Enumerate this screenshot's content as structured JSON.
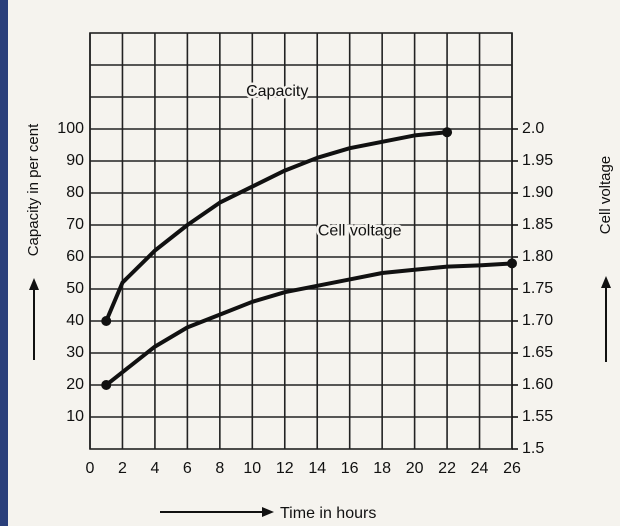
{
  "chart_data": {
    "type": "line",
    "xlabel": "Time in hours",
    "ylabel": "Capacity in per cent",
    "y2label": "Cell voltage",
    "xlim": [
      0,
      26
    ],
    "xticks": [
      0,
      2,
      4,
      6,
      8,
      10,
      12,
      14,
      16,
      18,
      20,
      22,
      24,
      26
    ],
    "ylim": [
      0,
      130
    ],
    "yticks": [
      10,
      20,
      30,
      40,
      50,
      60,
      70,
      80,
      90,
      100
    ],
    "y2lim": [
      1.5,
      2.15
    ],
    "y2ticks": [
      1.5,
      1.55,
      {
        "value": 1.6,
        "label": "1.60"
      },
      1.65,
      {
        "value": 1.7,
        "label": "1.70"
      },
      1.75,
      {
        "value": 1.8,
        "label": "1.80"
      },
      1.85,
      {
        "value": 1.9,
        "label": "1.90"
      },
      1.95,
      {
        "value": 2.0,
        "label": "2.0"
      }
    ],
    "grid": true,
    "series": [
      {
        "name": "Capacity",
        "color": "#111111",
        "x": [
          1,
          2,
          4,
          6,
          8,
          10,
          12,
          14,
          16,
          18,
          20,
          22
        ],
        "values": [
          40,
          52,
          62,
          70,
          77,
          82,
          87,
          91,
          94,
          96,
          98,
          99
        ]
      },
      {
        "name": "Cell voltage",
        "color": "#111111",
        "axis": "y2",
        "x": [
          1,
          2,
          4,
          6,
          8,
          10,
          12,
          14,
          16,
          18,
          20,
          22,
          24,
          26
        ],
        "values": [
          1.6,
          1.62,
          1.66,
          1.69,
          1.71,
          1.73,
          1.745,
          1.755,
          1.765,
          1.775,
          1.78,
          1.785,
          1.787,
          1.79
        ]
      }
    ]
  }
}
